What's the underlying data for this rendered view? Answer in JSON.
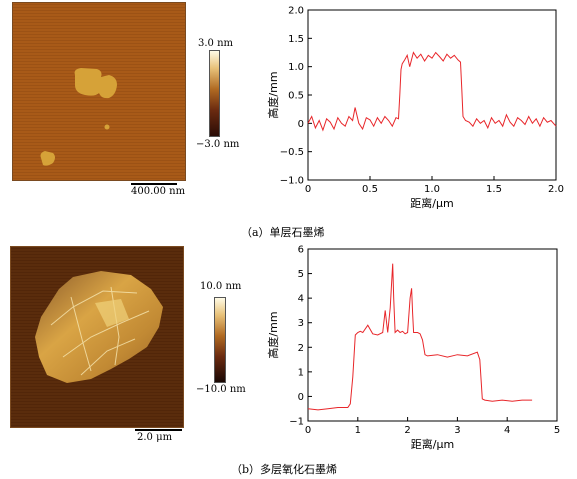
{
  "panel_a": {
    "colorbar_max": "3.0 nm",
    "colorbar_min": "−3.0 nm",
    "scale_label": "400.00 nm",
    "caption": "（a）单层石墨烯"
  },
  "panel_b": {
    "colorbar_max": "10.0 nm",
    "colorbar_min": "−10.0 nm",
    "scale_label": "2.0 μm",
    "caption": "（b）多层氧化石墨烯"
  },
  "chart_data": [
    {
      "type": "line",
      "xlabel": "距离/μm",
      "ylabel": "高度/mm",
      "xlim": [
        0,
        2.0
      ],
      "ylim": [
        -1.0,
        2.0
      ],
      "xticks": [
        "0",
        "0.5",
        "1.0",
        "1.5",
        "2.0"
      ],
      "yticks": [
        "−1.0",
        "−0.5",
        "0",
        "0.5",
        "1.0",
        "1.5",
        "2.0"
      ],
      "color": "#e8262a",
      "x": [
        0,
        0.03,
        0.06,
        0.09,
        0.12,
        0.15,
        0.18,
        0.21,
        0.24,
        0.27,
        0.3,
        0.33,
        0.36,
        0.38,
        0.41,
        0.44,
        0.47,
        0.5,
        0.53,
        0.56,
        0.59,
        0.62,
        0.65,
        0.68,
        0.71,
        0.73,
        0.74,
        0.75,
        0.76,
        0.78,
        0.8,
        0.82,
        0.85,
        0.88,
        0.91,
        0.94,
        0.97,
        1.0,
        1.03,
        1.06,
        1.09,
        1.12,
        1.15,
        1.18,
        1.21,
        1.23,
        1.24,
        1.25,
        1.27,
        1.3,
        1.33,
        1.36,
        1.39,
        1.42,
        1.45,
        1.48,
        1.51,
        1.54,
        1.57,
        1.6,
        1.63,
        1.66,
        1.69,
        1.72,
        1.75,
        1.78,
        1.81,
        1.84,
        1.87,
        1.9,
        1.93,
        1.96,
        2.0
      ],
      "y": [
        0.0,
        0.12,
        -0.08,
        0.05,
        -0.12,
        0.08,
        0.02,
        -0.1,
        0.1,
        0.0,
        -0.05,
        0.12,
        0.05,
        0.28,
        0.0,
        -0.1,
        0.1,
        0.06,
        -0.05,
        0.1,
        0.0,
        0.12,
        0.05,
        -0.05,
        0.1,
        0.08,
        0.5,
        0.95,
        1.05,
        1.12,
        1.2,
        1.0,
        1.25,
        1.15,
        1.22,
        1.1,
        1.2,
        1.15,
        1.25,
        1.18,
        1.1,
        1.22,
        1.15,
        1.2,
        1.12,
        1.08,
        0.6,
        0.12,
        0.05,
        0.02,
        -0.05,
        0.08,
        0.0,
        0.05,
        -0.08,
        0.1,
        0.0,
        0.05,
        -0.05,
        0.15,
        0.02,
        -0.05,
        0.1,
        0.05,
        -0.02,
        0.12,
        0.0,
        0.08,
        -0.05,
        0.1,
        0.02,
        0.05,
        -0.05
      ]
    },
    {
      "type": "line",
      "xlabel": "距离/μm",
      "ylabel": "高度/mm",
      "xlim": [
        0,
        5
      ],
      "ylim": [
        -1,
        6
      ],
      "xticks": [
        "0",
        "1",
        "2",
        "3",
        "4",
        "5"
      ],
      "yticks": [
        "−1",
        "0",
        "1",
        "2",
        "3",
        "4",
        "5",
        "6"
      ],
      "color": "#e8262a",
      "x": [
        0,
        0.2,
        0.4,
        0.6,
        0.8,
        0.85,
        0.9,
        0.95,
        1.0,
        1.05,
        1.1,
        1.2,
        1.3,
        1.4,
        1.5,
        1.55,
        1.6,
        1.65,
        1.7,
        1.72,
        1.75,
        1.8,
        1.85,
        1.9,
        1.95,
        2.0,
        2.05,
        2.08,
        2.1,
        2.12,
        2.15,
        2.2,
        2.25,
        2.3,
        2.35,
        2.4,
        2.6,
        2.8,
        3.0,
        3.2,
        3.4,
        3.45,
        3.5,
        3.55,
        3.7,
        3.9,
        4.1,
        4.3,
        4.5
      ],
      "y": [
        -0.5,
        -0.55,
        -0.5,
        -0.45,
        -0.45,
        -0.3,
        0.8,
        2.5,
        2.6,
        2.65,
        2.6,
        2.9,
        2.55,
        2.5,
        2.6,
        3.5,
        2.6,
        3.6,
        5.4,
        4.0,
        2.6,
        2.7,
        2.6,
        2.65,
        2.55,
        2.6,
        4.0,
        4.4,
        3.4,
        2.6,
        2.6,
        2.6,
        2.55,
        2.3,
        1.7,
        1.65,
        1.7,
        1.6,
        1.7,
        1.65,
        1.8,
        1.5,
        -0.1,
        -0.15,
        -0.2,
        -0.15,
        -0.2,
        -0.15,
        -0.15
      ]
    }
  ]
}
